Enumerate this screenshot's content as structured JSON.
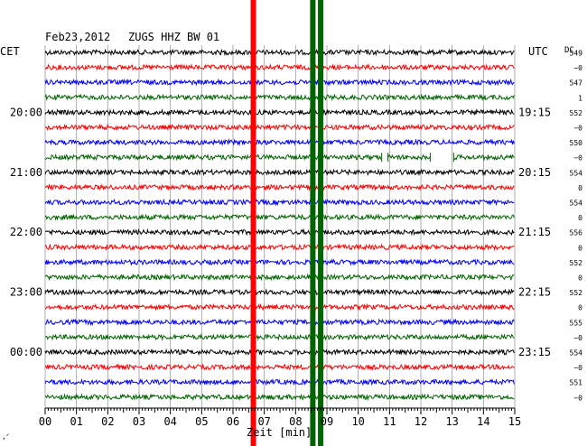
{
  "header": {
    "date": "Feb23,2012",
    "station": "ZUGS HHZ BW 01",
    "tz_left": "CET",
    "tz_right": "UTC",
    "dc_label": "DC"
  },
  "chart_data": {
    "type": "line",
    "title": "Feb23,2012   ZUGS HHZ BW 01",
    "xlabel": "Zeit [min]",
    "xlim": [
      0,
      15
    ],
    "x_ticks": [
      "00",
      "01",
      "02",
      "03",
      "04",
      "05",
      "06",
      "07",
      "08",
      "09",
      "10",
      "11",
      "12",
      "13",
      "14",
      "15"
    ],
    "row_count": 24,
    "row_colors": [
      "#000000",
      "#ff0000",
      "#0000ff",
      "#006400"
    ],
    "left_time_labels": [
      {
        "row": 4,
        "label": "20:00"
      },
      {
        "row": 8,
        "label": "21:00"
      },
      {
        "row": 12,
        "label": "22:00"
      },
      {
        "row": 16,
        "label": "23:00"
      },
      {
        "row": 20,
        "label": "00:00"
      }
    ],
    "right_time_labels": [
      {
        "row": 4,
        "label": "19:15"
      },
      {
        "row": 8,
        "label": "20:15"
      },
      {
        "row": 12,
        "label": "21:15"
      },
      {
        "row": 16,
        "label": "22:15"
      },
      {
        "row": 20,
        "label": "23:15"
      }
    ],
    "dc_values": [
      "549",
      "−0",
      "547",
      "1",
      "552",
      "−0",
      "550",
      "−0",
      "554",
      "0",
      "554",
      "0",
      "556",
      "0",
      "552",
      "0",
      "552",
      "0",
      "555",
      "−0",
      "554",
      "−0",
      "551",
      "−0"
    ],
    "vertical_markers": [
      {
        "x": 6.65,
        "color": "#ff0000"
      },
      {
        "x": 8.55,
        "color": "#006400"
      },
      {
        "x": 8.8,
        "color": "#006400"
      }
    ],
    "gaps": [
      {
        "row": 7,
        "from": 10.75,
        "to": 10.95
      },
      {
        "row": 7,
        "from": 12.3,
        "to": 13.05
      }
    ]
  }
}
